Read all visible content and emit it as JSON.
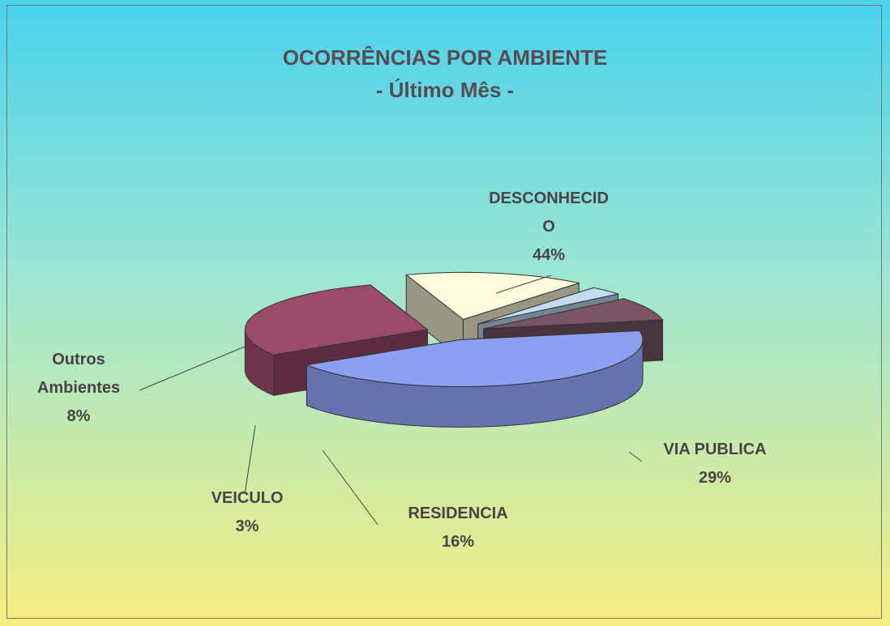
{
  "chart_data": {
    "type": "pie3d",
    "title": "OCORRÊNCIAS POR AMBIENTE",
    "subtitle": "- Último Mês -",
    "categories": [
      "DESCONHECIDO",
      "VIA PUBLICA",
      "RESIDENCIA",
      "VEICULO",
      "Outros Ambientes"
    ],
    "values": [
      44,
      29,
      16,
      3,
      8
    ],
    "value_labels": [
      "44%",
      "29%",
      "16%",
      "3%",
      "8%"
    ],
    "colors": [
      "#8c9ff0",
      "#9c4a6c",
      "#fffbdc",
      "#c2dcf2",
      "#7a5566"
    ]
  }
}
